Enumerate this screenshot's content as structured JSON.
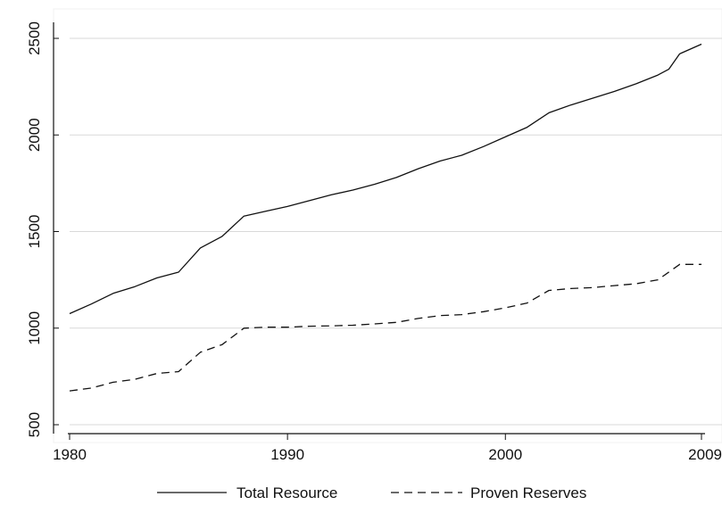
{
  "chart_data": {
    "type": "line",
    "title": "",
    "xlabel": "",
    "ylabel": "",
    "xlim": [
      1980,
      2009
    ],
    "ylim": [
      500,
      2500
    ],
    "x_ticks": [
      "1980",
      "1990",
      "2000",
      "2009"
    ],
    "y_ticks": [
      "500",
      "1000",
      "1500",
      "2000",
      "2500"
    ],
    "grid": "horizontal",
    "legend_position": "bottom",
    "series": [
      {
        "name": "Total Resource",
        "style": "solid",
        "color": "#111111",
        "points": [
          [
            1980,
            1075
          ],
          [
            1981,
            1125
          ],
          [
            1982,
            1180
          ],
          [
            1983,
            1215
          ],
          [
            1984,
            1260
          ],
          [
            1985,
            1290
          ],
          [
            1986,
            1415
          ],
          [
            1987,
            1475
          ],
          [
            1988,
            1580
          ],
          [
            1989,
            1605
          ],
          [
            1990,
            1630
          ],
          [
            1991,
            1660
          ],
          [
            1992,
            1690
          ],
          [
            1993,
            1715
          ],
          [
            1994,
            1745
          ],
          [
            1995,
            1780
          ],
          [
            1996,
            1825
          ],
          [
            1997,
            1865
          ],
          [
            1998,
            1895
          ],
          [
            1999,
            1940
          ],
          [
            2000,
            1990
          ],
          [
            2001,
            2040
          ],
          [
            2002,
            2115
          ],
          [
            2003,
            2155
          ],
          [
            2004,
            2190
          ],
          [
            2005,
            2225
          ],
          [
            2006,
            2265
          ],
          [
            2007,
            2310
          ],
          [
            2007.5,
            2340
          ],
          [
            2008,
            2420
          ],
          [
            2009,
            2470
          ]
        ]
      },
      {
        "name": "Proven Reserves",
        "style": "dashed",
        "color": "#111111",
        "points": [
          [
            1980,
            675
          ],
          [
            1981,
            690
          ],
          [
            1982,
            720
          ],
          [
            1983,
            735
          ],
          [
            1984,
            765
          ],
          [
            1985,
            775
          ],
          [
            1986,
            875
          ],
          [
            1987,
            915
          ],
          [
            1988,
            1000
          ],
          [
            1989,
            1005
          ],
          [
            1990,
            1005
          ],
          [
            1991,
            1010
          ],
          [
            1992,
            1012
          ],
          [
            1993,
            1015
          ],
          [
            1994,
            1022
          ],
          [
            1995,
            1030
          ],
          [
            1996,
            1050
          ],
          [
            1997,
            1065
          ],
          [
            1998,
            1070
          ],
          [
            1999,
            1085
          ],
          [
            2000,
            1105
          ],
          [
            2001,
            1130
          ],
          [
            2002,
            1195
          ],
          [
            2003,
            1205
          ],
          [
            2004,
            1210
          ],
          [
            2005,
            1220
          ],
          [
            2006,
            1230
          ],
          [
            2007,
            1250
          ],
          [
            2008,
            1330
          ],
          [
            2009,
            1330
          ]
        ]
      }
    ]
  }
}
